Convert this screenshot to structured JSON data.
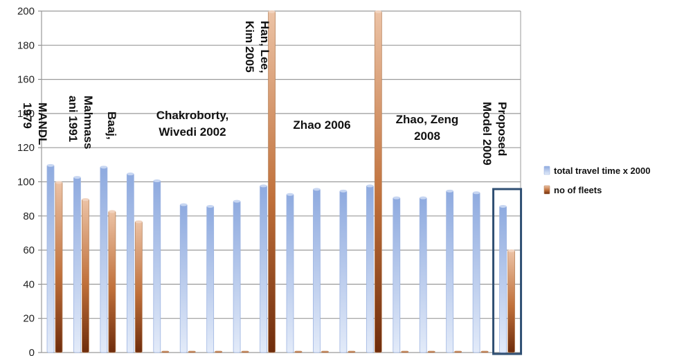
{
  "chart_data": {
    "type": "bar",
    "categories": [
      "",
      "",
      "",
      "",
      "",
      "",
      "",
      "",
      "",
      "",
      "",
      "",
      "",
      "",
      "",
      "",
      "",
      ""
    ],
    "series": [
      {
        "name": "total travel time x 2000",
        "values": [
          110,
          103,
          109,
          105,
          101,
          87,
          86,
          89,
          98,
          93,
          96,
          95,
          98,
          91,
          91,
          95,
          94,
          86
        ]
      },
      {
        "name": "no of fleets",
        "values": [
          100,
          90,
          83,
          77,
          0,
          0,
          0,
          0,
          200,
          0,
          0,
          0,
          200,
          0,
          0,
          0,
          0,
          60
        ]
      }
    ],
    "ylim": [
      0,
      200
    ],
    "yticks": [
      "0",
      "20",
      "40",
      "60",
      "80",
      "100",
      "120",
      "140",
      "160",
      "180",
      "200"
    ],
    "grid": true,
    "legend_position": "right",
    "highlight_category_index": 17,
    "colors": {
      "series1_light": "#d6e1f5",
      "series1_dark": "#8eaadf",
      "series2_light": "#e7b99c",
      "series2_dark": "#7a3410",
      "highlight_box": "#2f4f73",
      "grid": "#9a9a9a"
    },
    "annotations": [
      {
        "id": "mandl",
        "text": "MANDL 1979",
        "lines": [
          "MANDL",
          "1979"
        ],
        "rotation": 90
      },
      {
        "id": "mahmassani",
        "text": "Mahmass ani 1991",
        "lines": [
          "Mahmass",
          "ani 1991"
        ],
        "rotation": 90
      },
      {
        "id": "baaj",
        "text": "Baaj,",
        "lines": [
          "Baaj,"
        ],
        "rotation": 90
      },
      {
        "id": "chakroborty",
        "text": "Chakroborty, Wivedi 2002",
        "lines": [
          "Chakroborty,",
          "Wivedi 2002"
        ],
        "rotation": 0
      },
      {
        "id": "han",
        "text": "Han, Lee, Kim 2005",
        "lines": [
          "Han, Lee,",
          "Kim 2005"
        ],
        "rotation": 90
      },
      {
        "id": "zhao2006",
        "text": "Zhao 2006",
        "lines": [
          "Zhao 2006"
        ],
        "rotation": 0
      },
      {
        "id": "zhaozeng",
        "text": "Zhao, Zeng 2008",
        "lines": [
          "Zhao, Zeng",
          "2008"
        ],
        "rotation": 0
      },
      {
        "id": "proposed",
        "text": "Proposed Model 2009",
        "lines": [
          "Proposed",
          "Model 2009"
        ],
        "rotation": 90
      }
    ]
  }
}
